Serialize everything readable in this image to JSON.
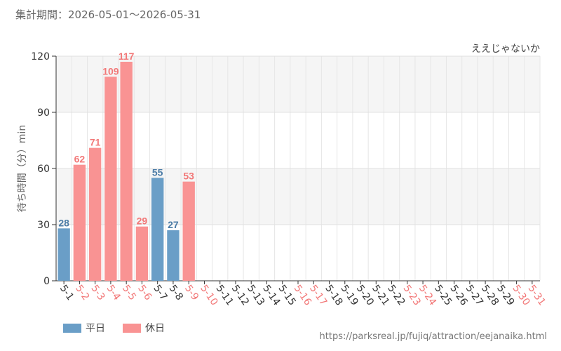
{
  "period_label": "集計期間：2026-05-01～2026-05-31",
  "footer_url": "https://parksreal.jp/fujiq/attraction/eejanaika.html",
  "colors": {
    "weekday": "#6a9ec7",
    "holiday": "#f99393",
    "weekday_text": "#4a7ba6",
    "holiday_text": "#f27878"
  },
  "chart_data": {
    "type": "bar",
    "title": "ええじゃないか",
    "ylabel": "待ち時間（分）min",
    "xlabel": "",
    "ylim": [
      0,
      120
    ],
    "yticks": [
      0,
      30,
      60,
      90,
      120
    ],
    "grid": true,
    "legend_position": "bottom-left",
    "categories": [
      "5-1",
      "5-2",
      "5-3",
      "5-4",
      "5-5",
      "5-6",
      "5-7",
      "5-8",
      "5-9",
      "5-10",
      "5-11",
      "5-12",
      "5-13",
      "5-14",
      "5-15",
      "5-16",
      "5-17",
      "5-18",
      "5-19",
      "5-20",
      "5-21",
      "5-22",
      "5-23",
      "5-24",
      "5-25",
      "5-26",
      "5-27",
      "5-28",
      "5-29",
      "5-30",
      "5-31"
    ],
    "day_types": [
      "平日",
      "休日",
      "休日",
      "休日",
      "休日",
      "休日",
      "平日",
      "平日",
      "休日",
      "休日",
      "平日",
      "平日",
      "平日",
      "平日",
      "平日",
      "休日",
      "休日",
      "平日",
      "平日",
      "平日",
      "平日",
      "平日",
      "休日",
      "休日",
      "平日",
      "平日",
      "平日",
      "平日",
      "平日",
      "休日",
      "休日"
    ],
    "values": [
      28,
      62,
      71,
      109,
      117,
      29,
      55,
      27,
      53,
      null,
      null,
      null,
      null,
      null,
      null,
      null,
      null,
      null,
      null,
      null,
      null,
      null,
      null,
      null,
      null,
      null,
      null,
      null,
      null,
      null,
      null
    ],
    "legend": [
      {
        "key": "平日",
        "label": "平日"
      },
      {
        "key": "休日",
        "label": "休日"
      }
    ]
  }
}
